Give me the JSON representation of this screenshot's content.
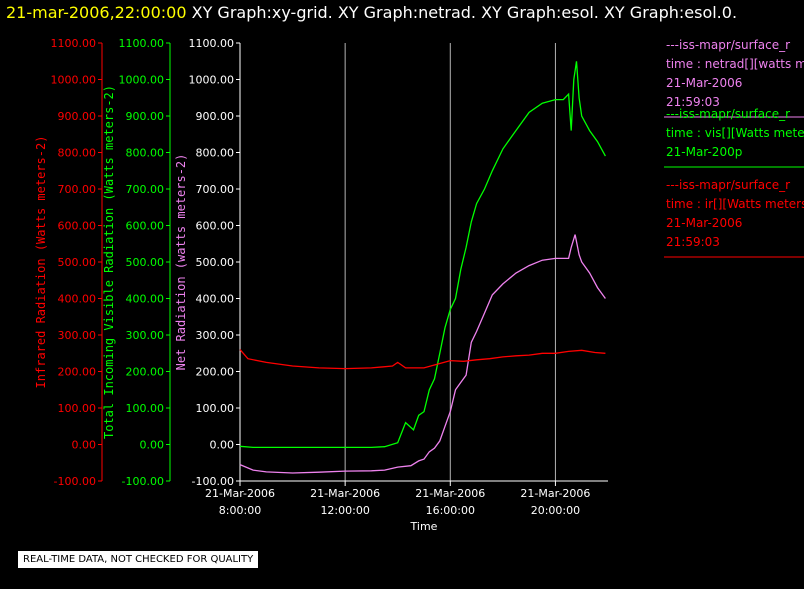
{
  "header": {
    "date": "21-mar-2006,22:00:00",
    "graphs": "XY Graph:xy-grid.  XY Graph:netrad.  XY Graph:esol.  XY Graph:esol.0."
  },
  "note": "REAL-TIME DATA, NOT CHECKED FOR QUALITY",
  "colors": {
    "ir": "#ff0000",
    "vis": "#00ff00",
    "netrad": "#ee82ee",
    "grid": "#b4b4b4",
    "axis": "#ffffff"
  },
  "chart_data": {
    "type": "line",
    "xlabel": "Time",
    "x_ticks": [
      {
        "date": "21-Mar-2006",
        "time": "8:00:00",
        "hour": 8
      },
      {
        "date": "21-Mar-2006",
        "time": "12:00:00",
        "hour": 12
      },
      {
        "date": "21-Mar-2006",
        "time": "16:00:00",
        "hour": 16
      },
      {
        "date": "21-Mar-2006",
        "time": "20:00:00",
        "hour": 20
      }
    ],
    "xlim_hours": [
      8,
      22
    ],
    "ylim": [
      -100,
      1100
    ],
    "y_ticks": [
      "-100.00",
      "0.00",
      "100.00",
      "200.00",
      "300.00",
      "400.00",
      "500.00",
      "600.00",
      "700.00",
      "800.00",
      "900.00",
      "1000.00",
      "1100.00"
    ],
    "axes": [
      {
        "key": "ir",
        "label": "Infrared Radiation (Watts meters-2)"
      },
      {
        "key": "vis",
        "label": "Total Incoming Visible Radiation (Watts meters-2)"
      },
      {
        "key": "netrad",
        "label": "Net Radiation (watts meters-2)"
      }
    ],
    "grid": true,
    "legend_position": "right",
    "series": [
      {
        "key": "netrad",
        "legend": [
          "---iss-mapr/surface_r",
          "time : netrad[][watts m",
          "21-Mar-2006",
          "21:59:03"
        ],
        "points": [
          [
            8.0,
            -55
          ],
          [
            8.5,
            -70
          ],
          [
            9.0,
            -75
          ],
          [
            10.0,
            -78
          ],
          [
            11.0,
            -76
          ],
          [
            12.0,
            -73
          ],
          [
            13.0,
            -72
          ],
          [
            13.5,
            -70
          ],
          [
            14.0,
            -62
          ],
          [
            14.5,
            -58
          ],
          [
            14.8,
            -45
          ],
          [
            15.0,
            -40
          ],
          [
            15.2,
            -20
          ],
          [
            15.4,
            -10
          ],
          [
            15.6,
            10
          ],
          [
            15.8,
            50
          ],
          [
            16.0,
            90
          ],
          [
            16.2,
            150
          ],
          [
            16.4,
            170
          ],
          [
            16.6,
            190
          ],
          [
            16.8,
            280
          ],
          [
            17.0,
            310
          ],
          [
            17.3,
            360
          ],
          [
            17.6,
            410
          ],
          [
            18.0,
            440
          ],
          [
            18.5,
            470
          ],
          [
            19.0,
            490
          ],
          [
            19.5,
            505
          ],
          [
            20.0,
            510
          ],
          [
            20.5,
            510
          ],
          [
            20.6,
            540
          ],
          [
            20.75,
            575
          ],
          [
            20.9,
            520
          ],
          [
            21.0,
            500
          ],
          [
            21.3,
            470
          ],
          [
            21.6,
            430
          ],
          [
            21.9,
            400
          ]
        ]
      },
      {
        "key": "vis",
        "legend": [
          "---iss-mapr/surface_r",
          "time : vis[][Watts mete",
          "21-Mar-200p"
        ],
        "points": [
          [
            8.0,
            -5
          ],
          [
            8.5,
            -8
          ],
          [
            9.0,
            -8
          ],
          [
            10.0,
            -8
          ],
          [
            11.0,
            -8
          ],
          [
            12.0,
            -8
          ],
          [
            13.0,
            -8
          ],
          [
            13.5,
            -6
          ],
          [
            14.0,
            5
          ],
          [
            14.3,
            60
          ],
          [
            14.6,
            40
          ],
          [
            14.8,
            80
          ],
          [
            15.0,
            90
          ],
          [
            15.2,
            150
          ],
          [
            15.4,
            180
          ],
          [
            15.6,
            250
          ],
          [
            15.8,
            320
          ],
          [
            16.0,
            370
          ],
          [
            16.2,
            400
          ],
          [
            16.4,
            480
          ],
          [
            16.6,
            540
          ],
          [
            16.8,
            610
          ],
          [
            17.0,
            660
          ],
          [
            17.3,
            700
          ],
          [
            17.6,
            750
          ],
          [
            18.0,
            810
          ],
          [
            18.3,
            840
          ],
          [
            18.6,
            870
          ],
          [
            19.0,
            910
          ],
          [
            19.5,
            935
          ],
          [
            20.0,
            945
          ],
          [
            20.3,
            945
          ],
          [
            20.5,
            960
          ],
          [
            20.6,
            860
          ],
          [
            20.7,
            1000
          ],
          [
            20.8,
            1050
          ],
          [
            20.9,
            950
          ],
          [
            21.0,
            900
          ],
          [
            21.3,
            860
          ],
          [
            21.6,
            830
          ],
          [
            21.9,
            790
          ]
        ]
      },
      {
        "key": "ir",
        "legend": [
          "---iss-mapr/surface_r",
          "time : ir[][Watts meters",
          "21-Mar-2006",
          "21:59:03"
        ],
        "points": [
          [
            8.0,
            260
          ],
          [
            8.3,
            235
          ],
          [
            9.0,
            225
          ],
          [
            10.0,
            215
          ],
          [
            11.0,
            210
          ],
          [
            12.0,
            208
          ],
          [
            13.0,
            210
          ],
          [
            13.8,
            215
          ],
          [
            14.0,
            225
          ],
          [
            14.3,
            210
          ],
          [
            15.0,
            210
          ],
          [
            15.5,
            220
          ],
          [
            16.0,
            230
          ],
          [
            16.5,
            228
          ],
          [
            17.0,
            232
          ],
          [
            17.5,
            235
          ],
          [
            18.0,
            240
          ],
          [
            18.5,
            243
          ],
          [
            19.0,
            245
          ],
          [
            19.5,
            250
          ],
          [
            20.0,
            250
          ],
          [
            20.5,
            255
          ],
          [
            21.0,
            258
          ],
          [
            21.5,
            252
          ],
          [
            21.9,
            250
          ]
        ]
      }
    ]
  }
}
